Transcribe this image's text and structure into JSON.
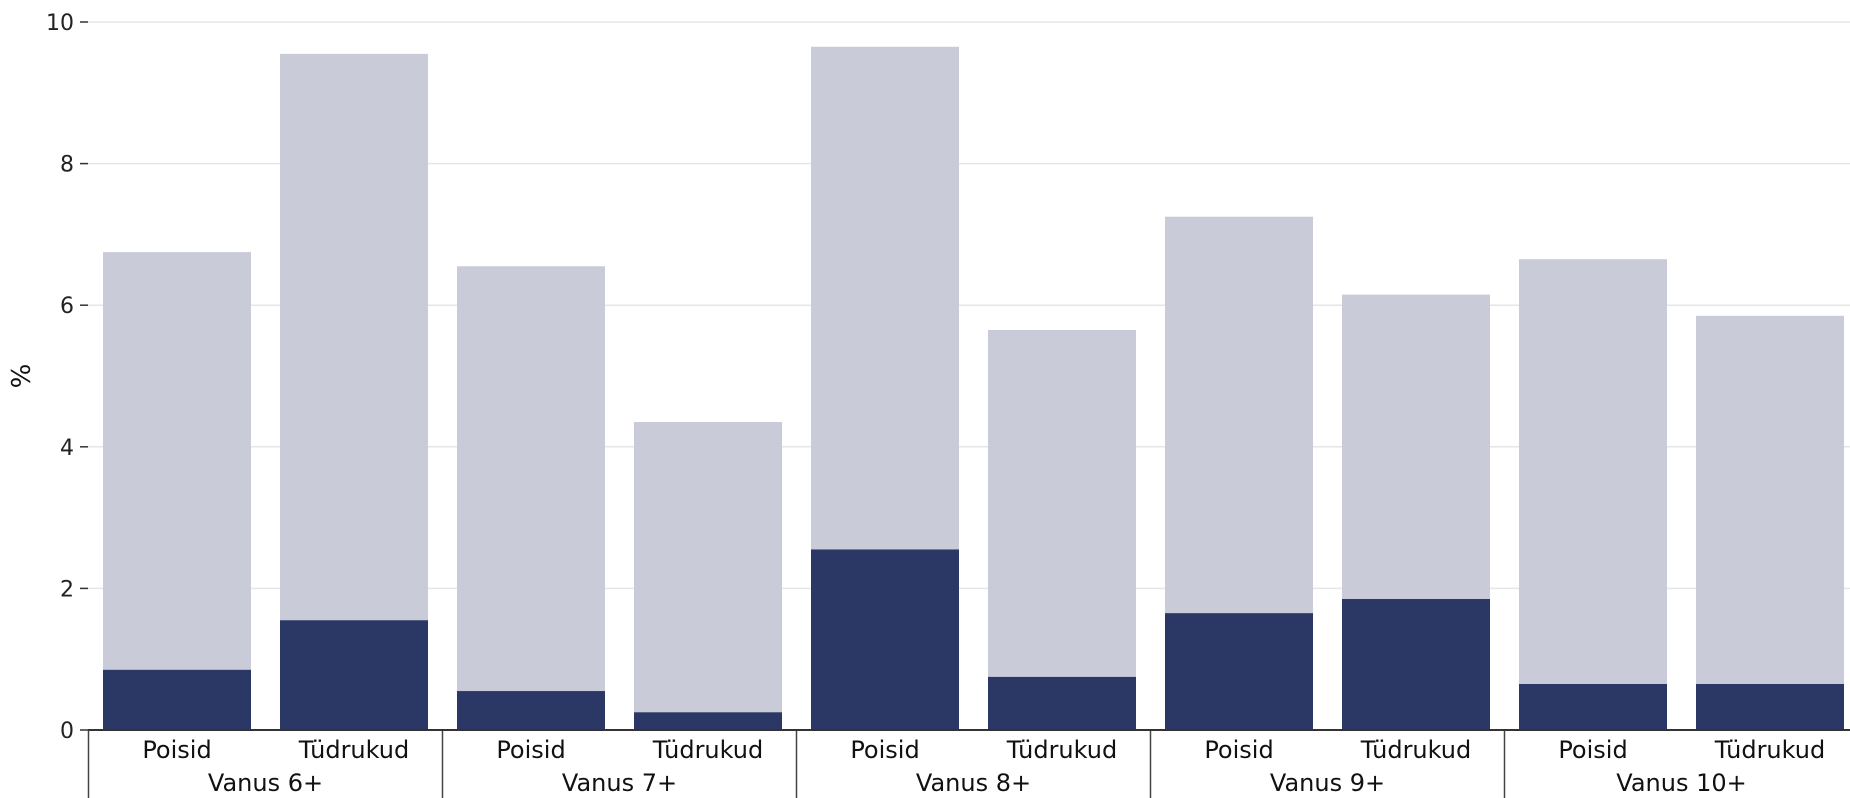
{
  "colors": {
    "total": "#c9ccd8",
    "highlight": "#2b3764"
  },
  "chart_data": {
    "type": "bar",
    "stacking": "overlay",
    "ylabel": "%",
    "xlabel": "",
    "ylim": [
      0,
      10
    ],
    "yticks": [
      "0",
      "2",
      "4",
      "6",
      "8",
      "10"
    ],
    "grid": true,
    "groups": [
      {
        "label": "Vanus 6+",
        "bars": [
          {
            "label": "Poisid",
            "total": 6.75,
            "inner": 0.85
          },
          {
            "label": "Tüdrukud",
            "total": 9.55,
            "inner": 1.55
          }
        ]
      },
      {
        "label": "Vanus 7+",
        "bars": [
          {
            "label": "Poisid",
            "total": 6.55,
            "inner": 0.55
          },
          {
            "label": "Tüdrukud",
            "total": 4.35,
            "inner": 0.25
          }
        ]
      },
      {
        "label": "Vanus 8+",
        "bars": [
          {
            "label": "Poisid",
            "total": 9.65,
            "inner": 2.55
          },
          {
            "label": "Tüdrukud",
            "total": 5.65,
            "inner": 0.75
          }
        ]
      },
      {
        "label": "Vanus 9+",
        "bars": [
          {
            "label": "Poisid",
            "total": 7.25,
            "inner": 1.65
          },
          {
            "label": "Tüdrukud",
            "total": 6.15,
            "inner": 1.85
          }
        ]
      },
      {
        "label": "Vanus 10+",
        "bars": [
          {
            "label": "Poisid",
            "total": 6.65,
            "inner": 0.65
          },
          {
            "label": "Tüdrukud",
            "total": 5.85,
            "inner": 0.65
          }
        ]
      }
    ]
  }
}
